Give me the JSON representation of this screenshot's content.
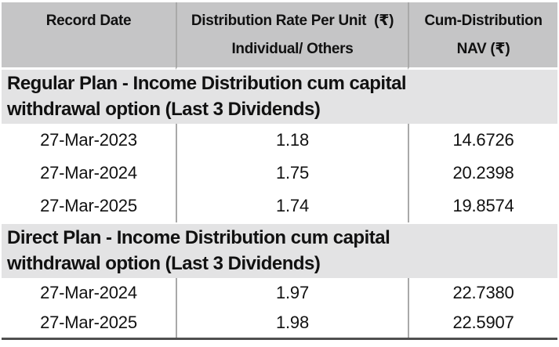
{
  "table": {
    "header": {
      "record_date": "Record Date",
      "rate_line1": "Distribution Rate Per Unit  (₹)",
      "rate_line2": "Individual/ Others",
      "nav_line1": "Cum-Distribution",
      "nav_line2": "NAV (₹)"
    },
    "sections": [
      {
        "title": "Regular Plan - Income Distribution cum capital withdrawal option (Last 3 Dividends)",
        "rows": [
          {
            "record_date": "27-Mar-2023",
            "rate_per_unit": "1.18",
            "cum_nav": "14.6726"
          },
          {
            "record_date": "27-Mar-2024",
            "rate_per_unit": "1.75",
            "cum_nav": "20.2398"
          },
          {
            "record_date": "27-Mar-2025",
            "rate_per_unit": "1.74",
            "cum_nav": "19.8574"
          }
        ]
      },
      {
        "title": "Direct Plan - Income Distribution cum capital withdrawal option (Last 3 Dividends)",
        "rows": [
          {
            "record_date": "27-Mar-2024",
            "rate_per_unit": "1.97",
            "cum_nav": "22.7380"
          },
          {
            "record_date": "27-Mar-2025",
            "rate_per_unit": "1.98",
            "cum_nav": "22.5907"
          }
        ]
      }
    ],
    "colors": {
      "header_bg": "#c5c5c6",
      "section_bg": "#e3e3e4",
      "divider": "#a9a9a9",
      "bottom_border": "#4f4f4f",
      "text": "#111111"
    }
  }
}
